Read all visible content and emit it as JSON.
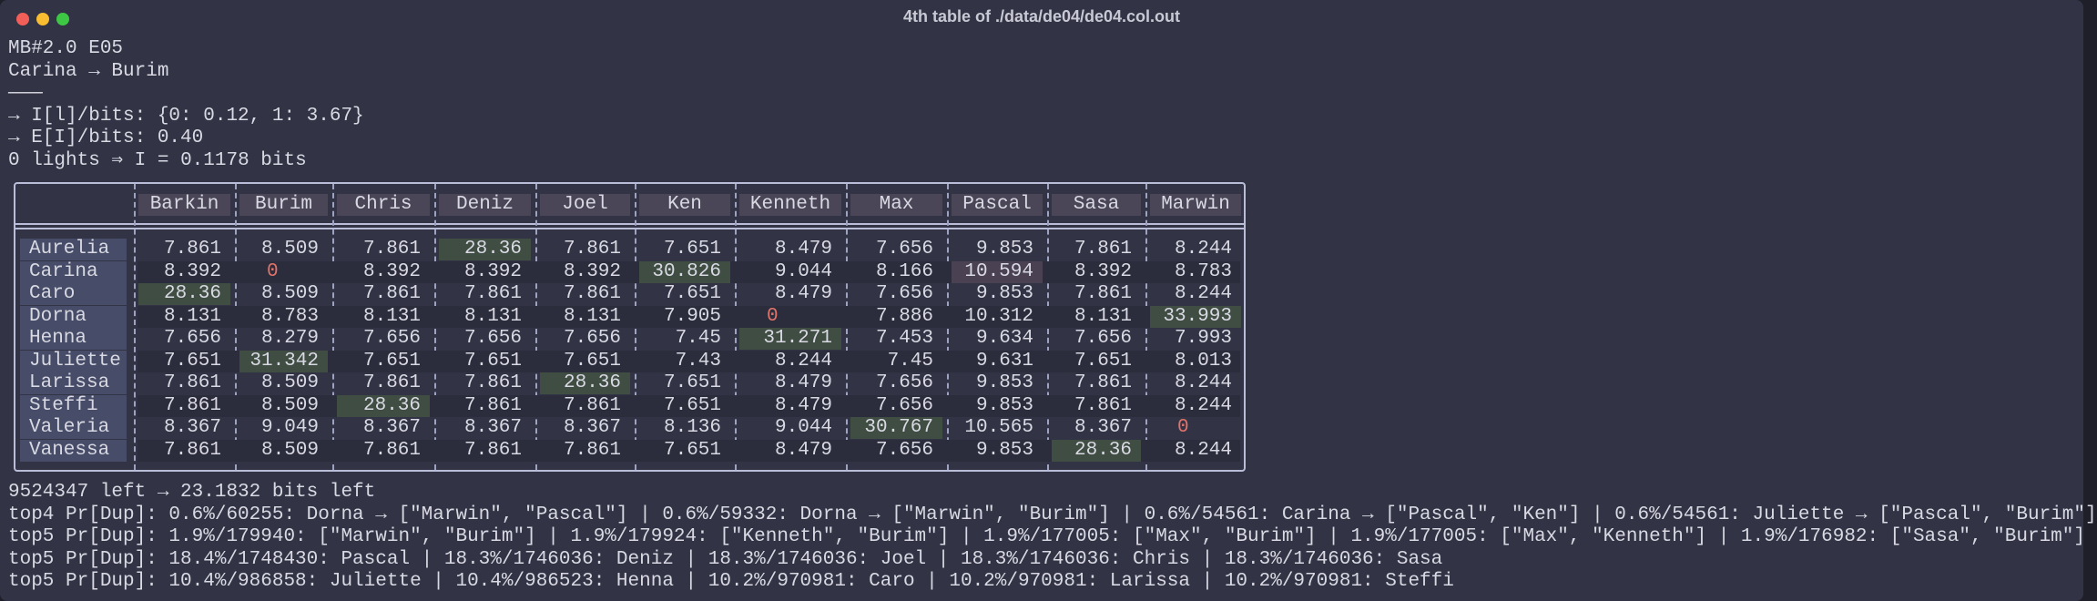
{
  "window": {
    "title": "4th table of ./data/de04/de04.col.out"
  },
  "header_lines": [
    "MB#2.0 E05",
    "Carina → Burim",
    "———",
    "→ I[l]/bits: {0: 0.12, 1: 3.67}",
    "→ E[I]/bits: 0.40",
    "0 lights ⇒ I = 0.1178 bits"
  ],
  "table": {
    "columns": [
      "Barkin",
      "Burim",
      "Chris",
      "Deniz",
      "Joel",
      "Ken",
      "Kenneth",
      "Max",
      "Pascal",
      "Sasa",
      "Marwin"
    ],
    "highlight_colors": {
      "row_max": "#3f4d42",
      "col_max": "#4a4152",
      "zero_text": "#e0736a"
    },
    "rows": [
      {
        "name": "Aurelia",
        "cells": [
          "7.861",
          "8.509",
          "7.861",
          "28.36",
          "7.861",
          "7.651",
          "8.479",
          "7.656",
          "9.853",
          "7.861",
          "8.244"
        ]
      },
      {
        "name": "Carina",
        "cells": [
          "8.392",
          "0",
          "8.392",
          "8.392",
          "8.392",
          "30.826",
          "9.044",
          "8.166",
          "10.594",
          "8.392",
          "8.783"
        ]
      },
      {
        "name": "Caro",
        "cells": [
          "28.36",
          "8.509",
          "7.861",
          "7.861",
          "7.861",
          "7.651",
          "8.479",
          "7.656",
          "9.853",
          "7.861",
          "8.244"
        ]
      },
      {
        "name": "Dorna",
        "cells": [
          "8.131",
          "8.783",
          "8.131",
          "8.131",
          "8.131",
          "7.905",
          "0",
          "7.886",
          "10.312",
          "8.131",
          "33.993"
        ]
      },
      {
        "name": "Henna",
        "cells": [
          "7.656",
          "8.279",
          "7.656",
          "7.656",
          "7.656",
          "7.45",
          "31.271",
          "7.453",
          "9.634",
          "7.656",
          "7.993"
        ]
      },
      {
        "name": "Juliette",
        "cells": [
          "7.651",
          "31.342",
          "7.651",
          "7.651",
          "7.651",
          "7.43",
          "8.244",
          "7.45",
          "9.631",
          "7.651",
          "8.013"
        ]
      },
      {
        "name": "Larissa",
        "cells": [
          "7.861",
          "8.509",
          "7.861",
          "7.861",
          "28.36",
          "7.651",
          "8.479",
          "7.656",
          "9.853",
          "7.861",
          "8.244"
        ]
      },
      {
        "name": "Steffi",
        "cells": [
          "7.861",
          "8.509",
          "28.36",
          "7.861",
          "7.861",
          "7.651",
          "8.479",
          "7.656",
          "9.853",
          "7.861",
          "8.244"
        ]
      },
      {
        "name": "Valeria",
        "cells": [
          "8.367",
          "9.049",
          "8.367",
          "8.367",
          "8.367",
          "8.136",
          "9.044",
          "30.767",
          "10.565",
          "8.367",
          "0"
        ]
      },
      {
        "name": "Vanessa",
        "cells": [
          "7.861",
          "8.509",
          "7.861",
          "7.861",
          "7.861",
          "7.651",
          "8.479",
          "7.656",
          "9.853",
          "28.36",
          "8.244"
        ]
      }
    ]
  },
  "footer_lines": [
    "9524347 left → 23.1832 bits left",
    "top4 Pr[Dup]: 0.6%/60255: Dorna → [\"Marwin\", \"Pascal\"] | 0.6%/59332: Dorna → [\"Marwin\", \"Burim\"] | 0.6%/54561: Carina → [\"Pascal\", \"Ken\"] | 0.6%/54561: Juliette → [\"Pascal\", \"Burim\"]",
    "top5 Pr[Dup]: 1.9%/179940: [\"Marwin\", \"Burim\"] | 1.9%/179924: [\"Kenneth\", \"Burim\"] | 1.9%/177005: [\"Max\", \"Burim\"] | 1.9%/177005: [\"Max\", \"Kenneth\"] | 1.9%/176982: [\"Sasa\", \"Burim\"]",
    "top5 Pr[Dup]: 18.4%/1748430: Pascal | 18.3%/1746036: Deniz | 18.3%/1746036: Joel | 18.3%/1746036: Chris | 18.3%/1746036: Sasa",
    "top5 Pr[Dup]: 10.4%/986858: Juliette | 10.4%/986523: Henna | 10.2%/970981: Caro | 10.2%/970981: Larissa | 10.2%/970981: Steffi"
  ]
}
